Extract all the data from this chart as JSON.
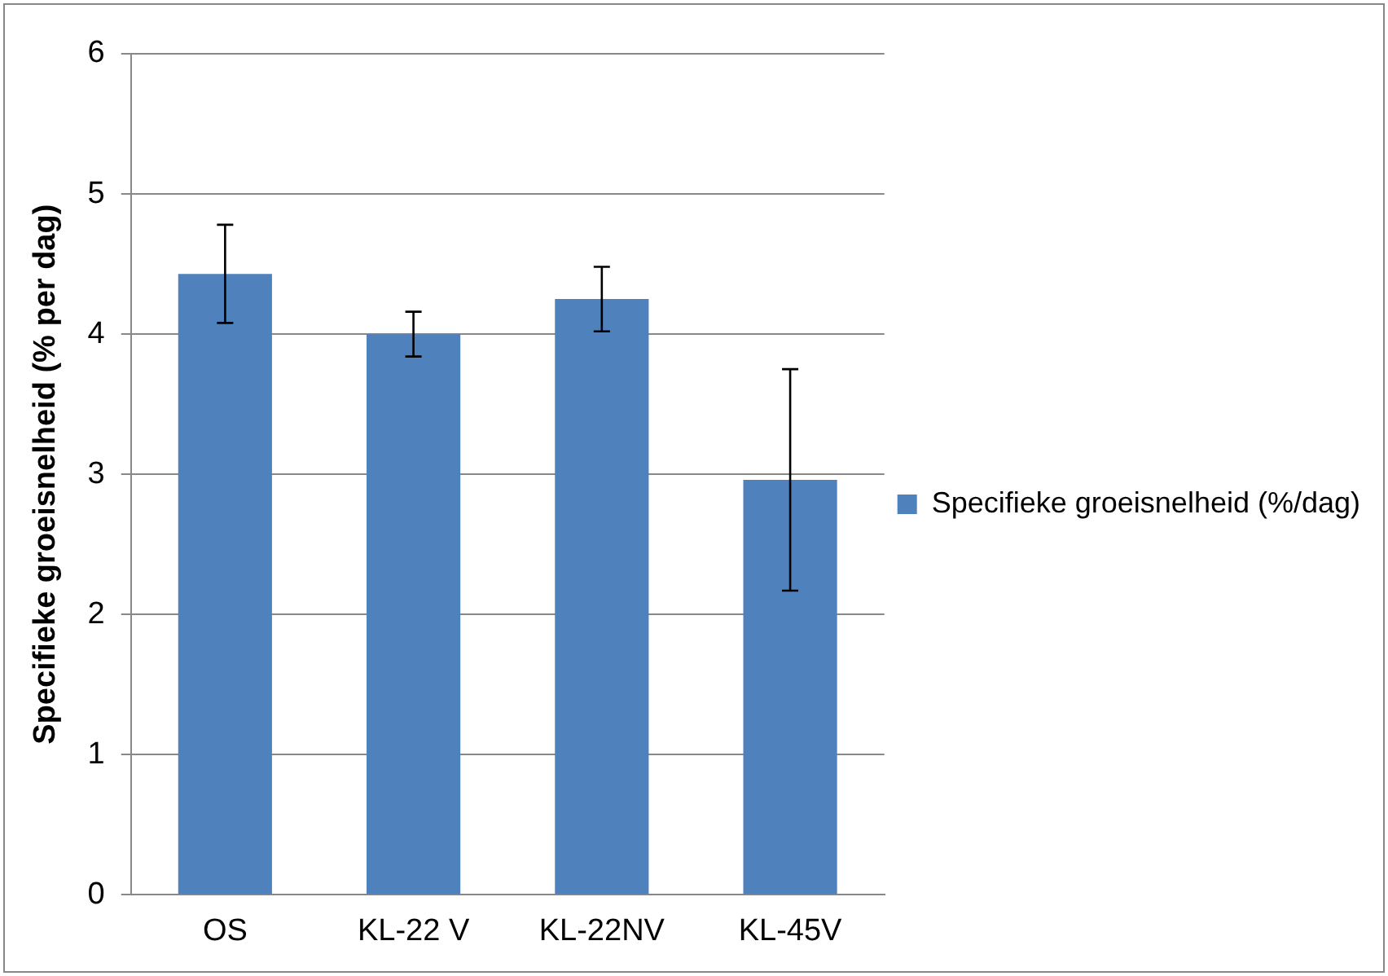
{
  "chart_data": {
    "type": "bar",
    "ylabel": "Specifieke groeisnelheid (% per dag)",
    "categories": [
      "OS",
      "KL-22 V",
      "KL-22NV",
      "KL-45V"
    ],
    "series": [
      {
        "name": "Specifieke groeisnelheid (%/dag)",
        "color": "#4f81bd",
        "values": [
          4.43,
          4.0,
          4.25,
          2.96
        ],
        "errors": [
          0.35,
          0.16,
          0.23,
          0.79
        ]
      }
    ],
    "ylim": [
      0,
      6
    ],
    "yticks": [
      0,
      1,
      2,
      3,
      4,
      5,
      6
    ],
    "grid": "y",
    "legend": "right"
  }
}
